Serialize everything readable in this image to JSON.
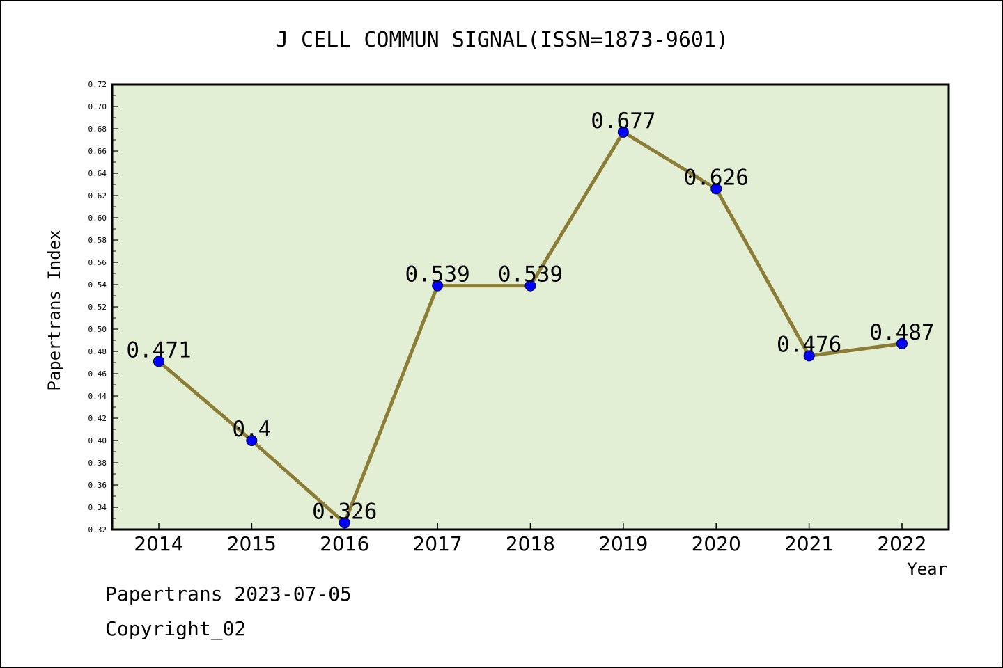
{
  "chart_data": {
    "type": "line",
    "title": "J CELL COMMUN SIGNAL(ISSN=1873-9601)",
    "xlabel": "Year",
    "ylabel": "Papertrans Index",
    "categories": [
      "2014",
      "2015",
      "2016",
      "2017",
      "2018",
      "2019",
      "2020",
      "2021",
      "2022"
    ],
    "values": [
      0.471,
      0.4,
      0.326,
      0.539,
      0.539,
      0.677,
      0.626,
      0.476,
      0.487
    ],
    "value_labels": [
      "0.471",
      "0.4",
      "0.326",
      "0.539",
      "0.539",
      "0.677",
      "0.626",
      "0.476",
      "0.487"
    ],
    "ylim": [
      0.32,
      0.72
    ],
    "yticks": [
      "0.32",
      "0.34",
      "0.36",
      "0.38",
      "0.40",
      "0.42",
      "0.44",
      "0.46",
      "0.48",
      "0.50",
      "0.52",
      "0.54",
      "0.56",
      "0.58",
      "0.60",
      "0.62",
      "0.64",
      "0.66",
      "0.68",
      "0.70",
      "0.72"
    ],
    "grid": false,
    "legend": "none",
    "colors": {
      "plot_background": "#e2efd5",
      "line": "#8b7d35",
      "marker": "#0000ff"
    }
  },
  "footer": {
    "date_line": "Papertrans 2023-07-05",
    "copyright_line": "Copyright_02"
  }
}
